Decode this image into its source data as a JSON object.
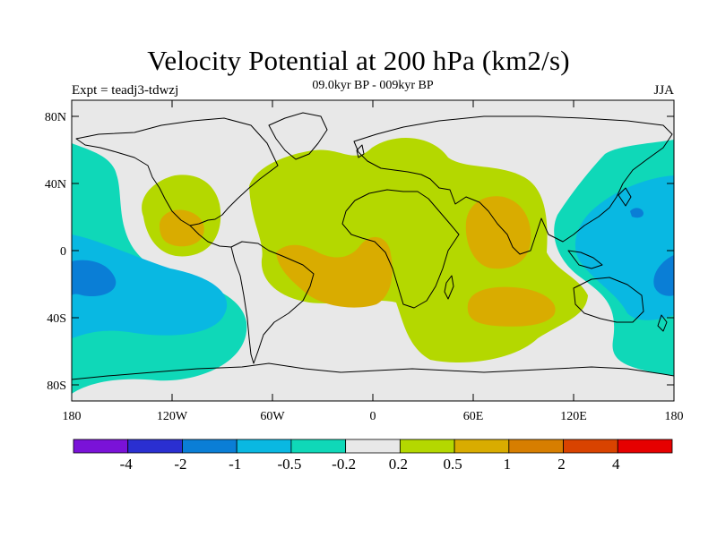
{
  "title": "Velocity Potential at 200 hPa (km2/s)",
  "subtitle": "09.0kyr BP - 009kyr BP",
  "experiment": "Expt = teadj3-tdwzj",
  "season": "JJA",
  "map": {
    "projection": "cylindrical equidistant",
    "lon_range": [
      -180,
      180
    ],
    "lat_range": [
      -90,
      90
    ],
    "land_background": "#e8e8e8",
    "lon_ticks": [
      "180",
      "120W",
      "60W",
      "0",
      "60E",
      "120E",
      "180"
    ],
    "lat_ticks": [
      "80N",
      "40N",
      "0",
      "40S",
      "80S"
    ]
  },
  "colorbar": {
    "colors": [
      "#7a12d8",
      "#2a2fd1",
      "#0a7ed6",
      "#09b8e2",
      "#0fd8b8",
      "#e8e8e8",
      "#b4d800",
      "#d9ac00",
      "#d77e00",
      "#d94300",
      "#e60000"
    ],
    "labels": [
      "-4",
      "-2",
      "-1",
      "-0.5",
      "-0.2",
      "0.2",
      "0.5",
      "1",
      "2",
      "4"
    ]
  }
}
